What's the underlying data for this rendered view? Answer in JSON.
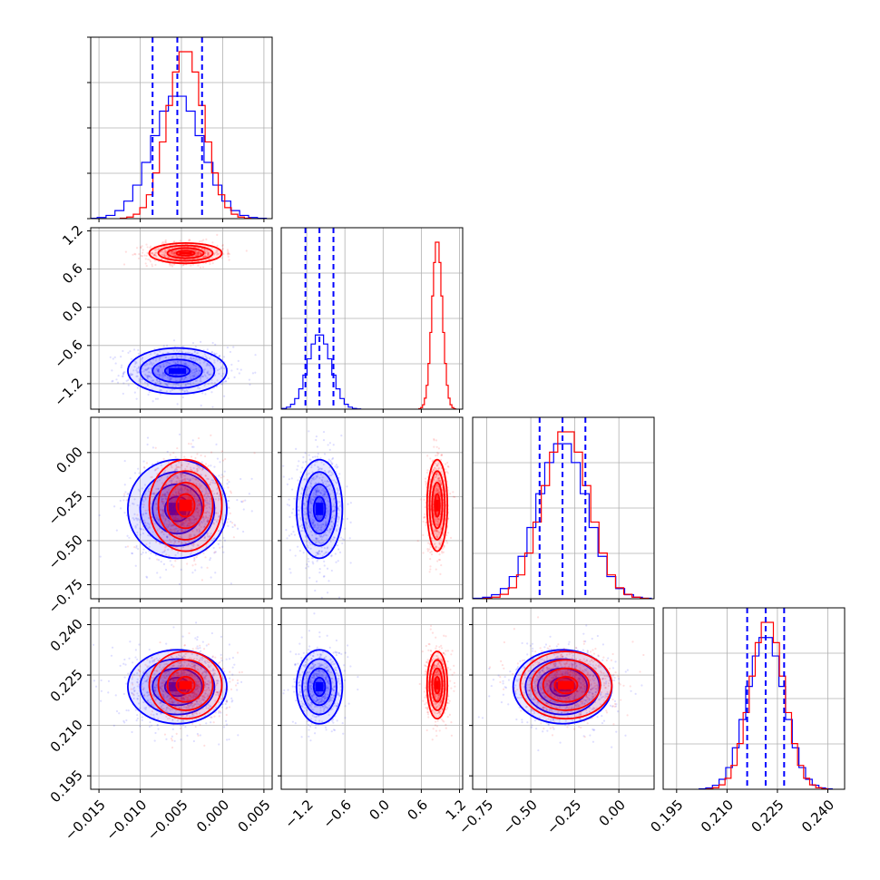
{
  "chart_data": {
    "type": "corner",
    "title": "",
    "grid": true,
    "colors": {
      "blue": "#0000ff",
      "red": "#ff0000"
    },
    "parameters": [
      {
        "ticks": [
          -0.015,
          -0.01,
          -0.005,
          0.0,
          0.005
        ],
        "tick_labels": [
          "−0.015",
          "−0.010",
          "−0.005",
          "0.000",
          "0.005"
        ],
        "range": [
          -0.016,
          0.006
        ]
      },
      {
        "ticks": [
          -1.2,
          -0.6,
          0.0,
          0.6,
          1.2
        ],
        "tick_labels": [
          "−1.2",
          "−0.6",
          "0.0",
          "0.6",
          "1.2"
        ],
        "range": [
          -1.6,
          1.25
        ]
      },
      {
        "ticks": [
          -0.75,
          -0.5,
          -0.25,
          0.0
        ],
        "tick_labels": [
          "−0.75",
          "−0.50",
          "−0.25",
          "0.00"
        ],
        "range": [
          -0.83,
          0.2
        ]
      },
      {
        "ticks": [
          0.195,
          0.21,
          0.225,
          0.24
        ],
        "tick_labels": [
          "0.195",
          "0.210",
          "0.225",
          "0.240"
        ],
        "range": [
          0.191,
          0.245
        ]
      }
    ],
    "series": [
      {
        "color": "blue",
        "means": [
          -0.0055,
          -1.0,
          -0.32,
          0.2215
        ],
        "stds": [
          0.003,
          0.18,
          0.14,
          0.0055
        ],
        "quantiles": [
          [
            -0.0085,
            -0.0055,
            -0.0025
          ],
          [
            -1.22,
            -1.0,
            -0.78
          ],
          [
            -0.45,
            -0.32,
            -0.19
          ],
          [
            0.216,
            0.2215,
            0.227
          ]
        ]
      },
      {
        "color": "red",
        "means": [
          -0.0045,
          0.85,
          -0.3,
          0.222
        ],
        "stds": [
          0.0022,
          0.08,
          0.13,
          0.005
        ],
        "quantiles": [
          null,
          null,
          null,
          null
        ]
      }
    ]
  }
}
